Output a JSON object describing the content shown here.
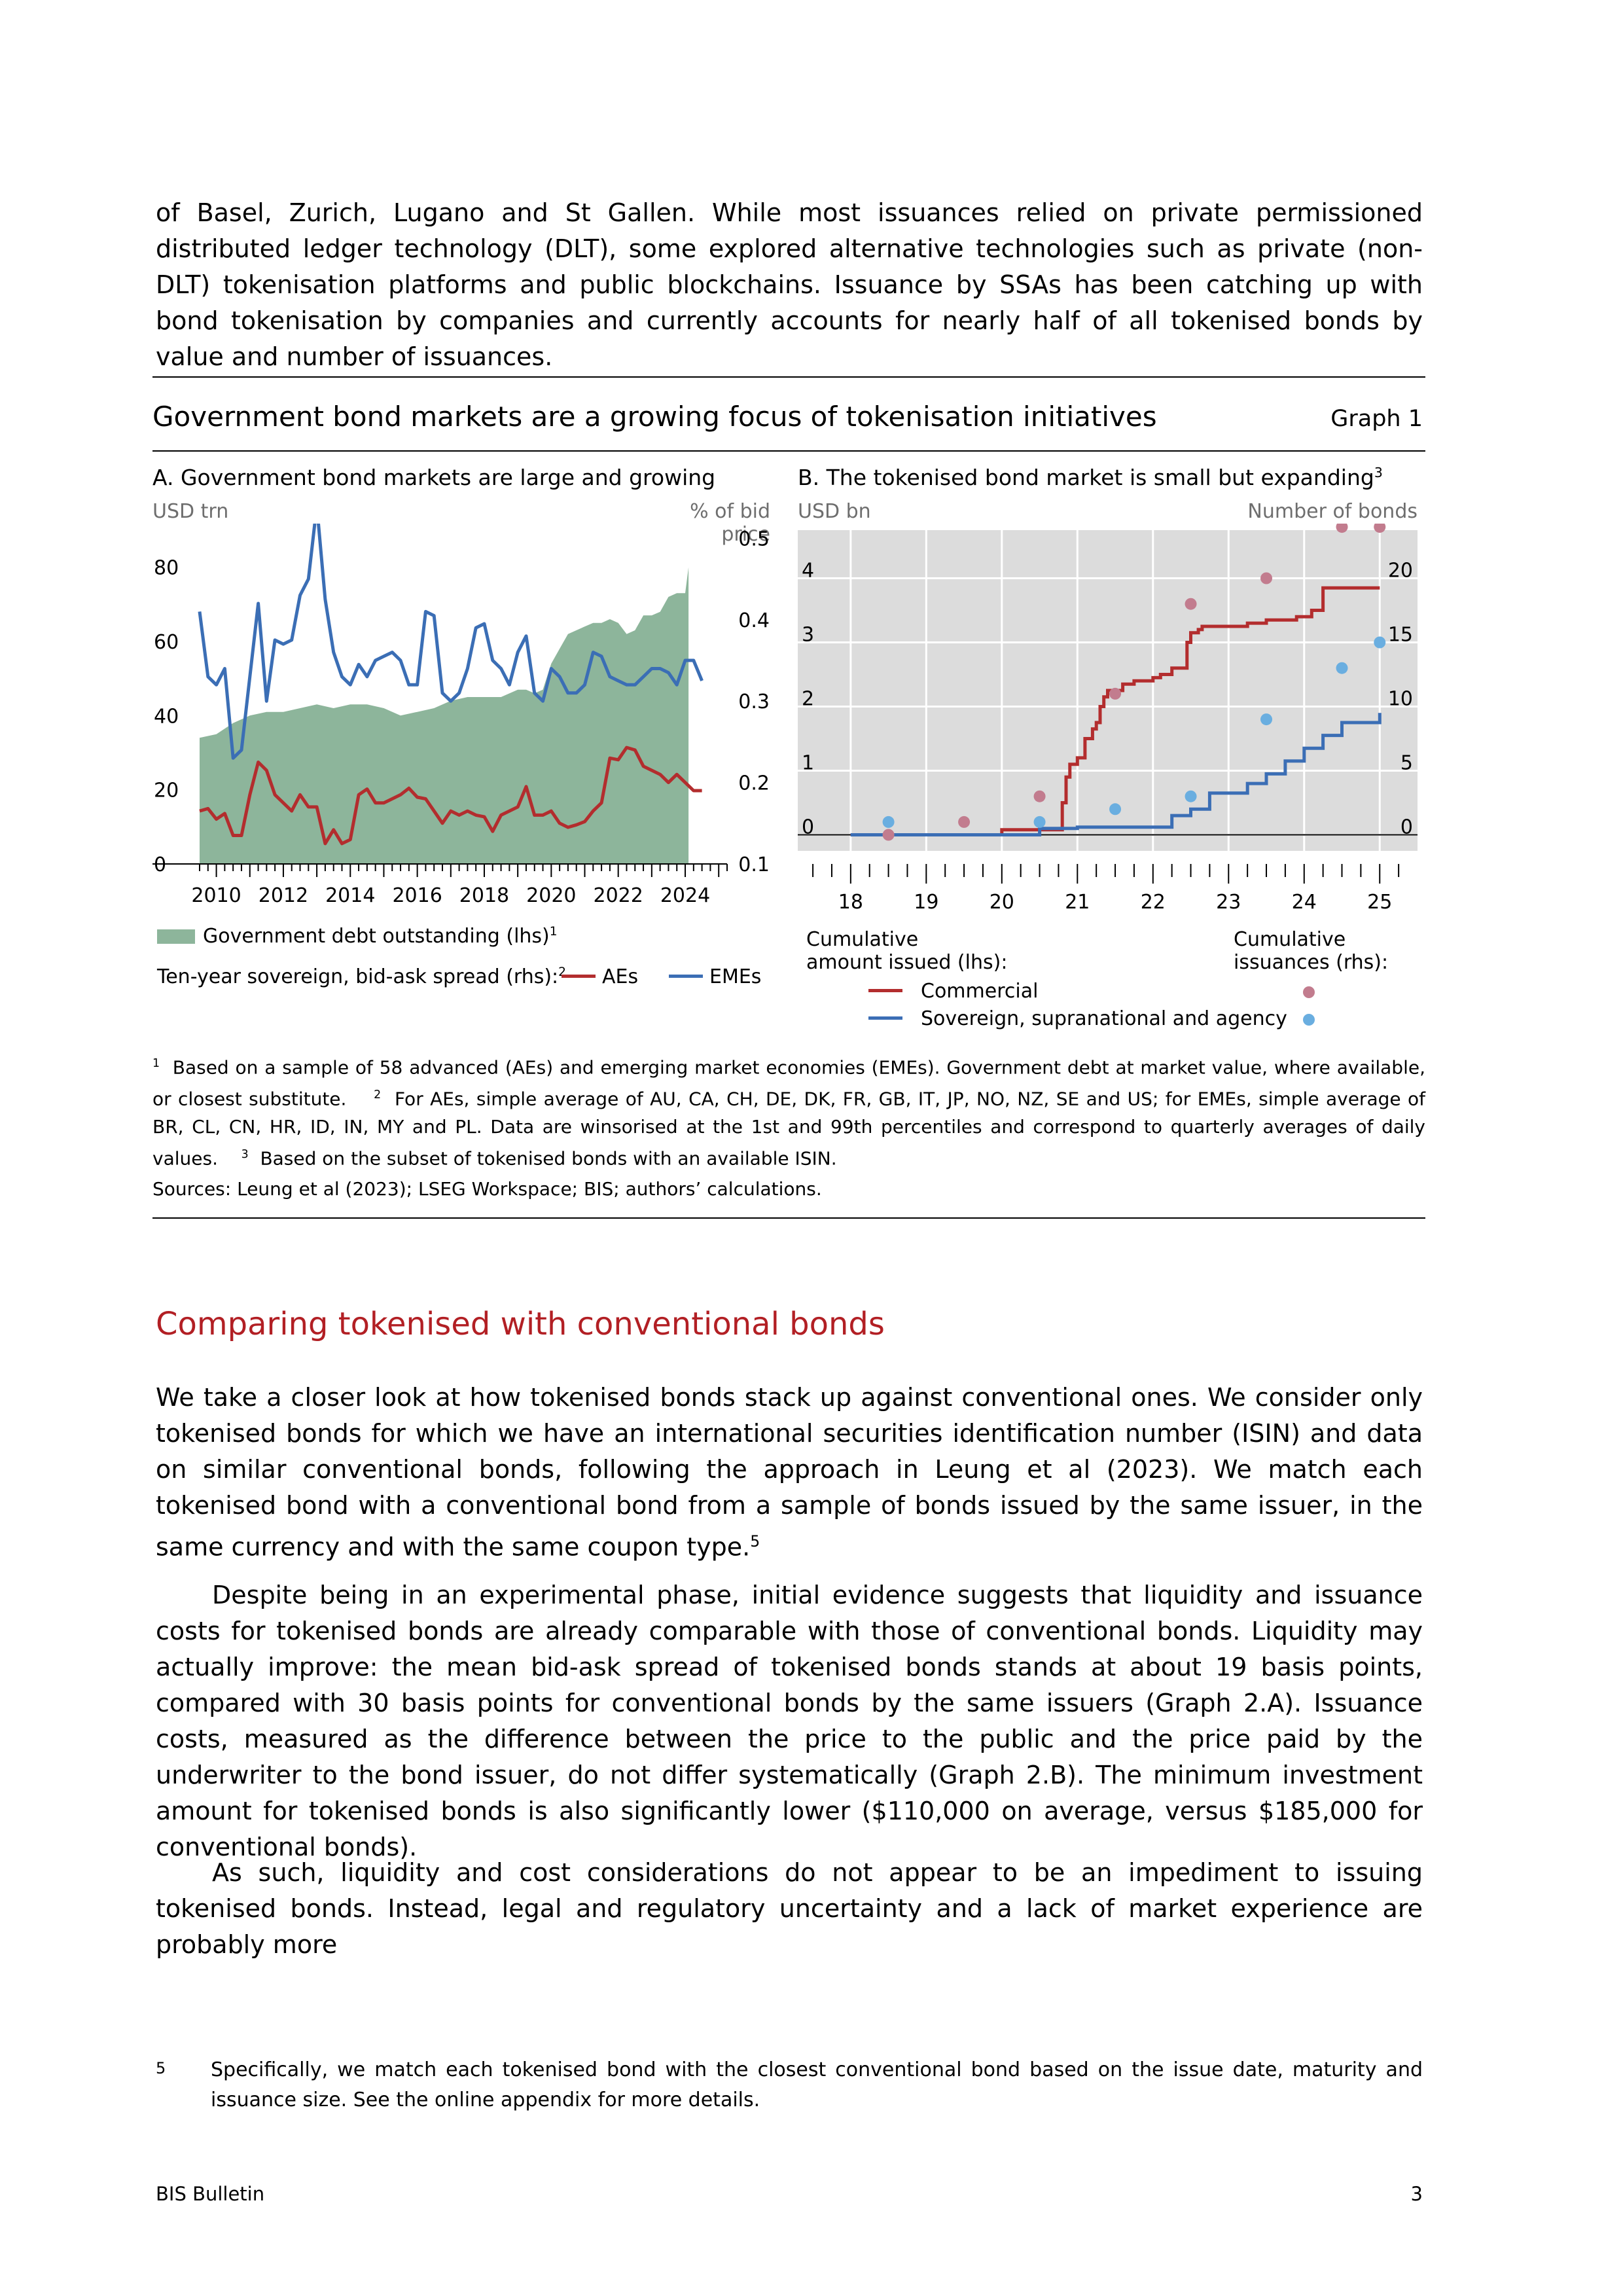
{
  "intro_paragraph": "of Basel, Zurich, Lugano and St Gallen. While most issuances relied on private permissioned distributed ledger technology (DLT), some explored alternative technologies such as private (non-DLT) tokenisation platforms and public blockchains. Issuance by SSAs has been catching up with bond tokenisation by companies and currently accounts for nearly half of all tokenised bonds by value and number of issuances.",
  "graph": {
    "title": "Government bond markets are a growing focus of tokenisation initiatives",
    "number": "Graph 1",
    "panel_a": {
      "title": "A. Government bond markets are large and growing",
      "lhs_unit": "USD trn",
      "rhs_unit": "% of bid price",
      "legend_area": "Government debt outstanding (lhs)",
      "legend_area_note": "1",
      "legend_lines_prefix": "Ten-year sovereign, bid-ask spread (rhs):",
      "legend_lines_note": "2",
      "legend_aes": "AEs",
      "legend_emes": "EMEs"
    },
    "panel_b": {
      "title": "B. The tokenised bond market is small but expanding",
      "title_note": "3",
      "lhs_unit": "USD bn",
      "rhs_unit": "Number of bonds",
      "legend_lines_head_1": "Cumulative",
      "legend_lines_head_2": "amount issued (lhs):",
      "legend_dots_head_1": "Cumulative",
      "legend_dots_head_2": "issuances (rhs):",
      "legend_commercial": "Commercial",
      "legend_ssa": "Sovereign, supranational and agency"
    },
    "footnote_1_mark": "1",
    "footnote_1": "Based on a sample of 58 advanced (AEs) and emerging market economies (EMEs). Government debt at market value, where available, or closest substitute.",
    "footnote_2_mark": "2",
    "footnote_2": "For AEs, simple average of AU, CA, CH, DE, DK, FR, GB, IT, JP, NO, NZ, SE and US; for EMEs, simple average of BR, CL, CN, HR, ID, IN, MY and PL. Data are winsorised at the 1st and 99th percentiles and correspond to quarterly averages of daily values.",
    "footnote_3_mark": "3",
    "footnote_3": "Based on the subset of tokenised bonds with an available ISIN.",
    "sources": "Sources: Leung et al (2023); LSEG Workspace; BIS; authors’ calculations."
  },
  "chart_data": [
    {
      "type": "area",
      "colors": {
        "area": "#8db59b",
        "aes": "#b32d2e",
        "emes": "#3b6eb5",
        "background": "#ffffff"
      },
      "x_tick_labels": [
        "2010",
        "2012",
        "2014",
        "2016",
        "2018",
        "2020",
        "2022",
        "2024"
      ],
      "xlim": [
        2009.5,
        2025.25
      ],
      "y_left_ticks": [
        "0",
        "20",
        "40",
        "60",
        "80"
      ],
      "ylim_left": [
        0,
        90
      ],
      "y_right_ticks": [
        "0.1",
        "0.2",
        "0.3",
        "0.4",
        "0.5"
      ],
      "ylim_right": [
        0.1,
        0.51
      ],
      "series": [
        {
          "name": "Government debt outstanding (lhs)",
          "axis": "left",
          "x": [
            2009.5,
            2010,
            2010.5,
            2011,
            2011.5,
            2012,
            2012.5,
            2013,
            2013.5,
            2014,
            2014.5,
            2015,
            2015.5,
            2016,
            2016.5,
            2017,
            2017.5,
            2018,
            2018.5,
            2019,
            2019.25,
            2019.5,
            2019.75,
            2020,
            2020.25,
            2020.5,
            2020.75,
            2021,
            2021.25,
            2021.5,
            2021.75,
            2022,
            2022.25,
            2022.5,
            2022.75,
            2023,
            2023.25,
            2023.5,
            2023.75,
            2024,
            2024.1
          ],
          "y": [
            34,
            35,
            38,
            40,
            41,
            41,
            42,
            43,
            42,
            43,
            43,
            42,
            40,
            41,
            42,
            44,
            45,
            45,
            45,
            47,
            47,
            46,
            47,
            54,
            58,
            62,
            63,
            64,
            65,
            65,
            66,
            65,
            62,
            63,
            67,
            67,
            68,
            72,
            73,
            73,
            80
          ]
        },
        {
          "name": "AEs",
          "axis": "right",
          "x": [
            2009.5,
            2009.75,
            2010,
            2010.25,
            2010.5,
            2010.75,
            2011,
            2011.25,
            2011.5,
            2011.75,
            2012,
            2012.25,
            2012.5,
            2012.75,
            2013,
            2013.25,
            2013.5,
            2013.75,
            2014,
            2014.25,
            2014.5,
            2014.75,
            2015,
            2015.25,
            2015.5,
            2015.75,
            2016,
            2016.25,
            2016.5,
            2016.75,
            2017,
            2017.25,
            2017.5,
            2017.75,
            2018,
            2018.25,
            2018.5,
            2018.75,
            2019,
            2019.25,
            2019.5,
            2019.75,
            2020,
            2020.25,
            2020.5,
            2020.75,
            2021,
            2021.25,
            2021.5,
            2021.75,
            2022,
            2022.25,
            2022.5,
            2022.75,
            2023,
            2023.25,
            2023.5,
            2023.75,
            2024,
            2024.25,
            2024.5
          ],
          "y": [
            0.165,
            0.168,
            0.155,
            0.162,
            0.135,
            0.135,
            0.185,
            0.225,
            0.215,
            0.185,
            0.175,
            0.165,
            0.185,
            0.17,
            0.17,
            0.125,
            0.142,
            0.125,
            0.13,
            0.185,
            0.192,
            0.175,
            0.175,
            0.18,
            0.185,
            0.193,
            0.182,
            0.18,
            0.165,
            0.15,
            0.165,
            0.16,
            0.165,
            0.16,
            0.158,
            0.14,
            0.16,
            0.165,
            0.17,
            0.195,
            0.16,
            0.16,
            0.165,
            0.15,
            0.145,
            0.148,
            0.152,
            0.165,
            0.175,
            0.23,
            0.228,
            0.243,
            0.24,
            0.22,
            0.215,
            0.21,
            0.2,
            0.21,
            0.2,
            0.19,
            0.19
          ]
        },
        {
          "name": "EMEs",
          "axis": "right",
          "x": [
            2009.5,
            2009.75,
            2010,
            2010.25,
            2010.5,
            2010.75,
            2011,
            2011.25,
            2011.5,
            2011.75,
            2012,
            2012.25,
            2012.5,
            2012.75,
            2013,
            2013.25,
            2013.5,
            2013.75,
            2014,
            2014.25,
            2014.5,
            2014.75,
            2015,
            2015.25,
            2015.5,
            2015.75,
            2016,
            2016.25,
            2016.5,
            2016.75,
            2017,
            2017.25,
            2017.5,
            2017.75,
            2018,
            2018.25,
            2018.5,
            2018.75,
            2019,
            2019.25,
            2019.5,
            2019.75,
            2020,
            2020.25,
            2020.5,
            2020.75,
            2021,
            2021.25,
            2021.5,
            2021.75,
            2022,
            2022.25,
            2022.5,
            2022.75,
            2023,
            2023.25,
            2023.5,
            2023.75,
            2024,
            2024.25,
            2024.5
          ],
          "y": [
            0.41,
            0.33,
            0.32,
            0.34,
            0.23,
            0.24,
            0.33,
            0.42,
            0.3,
            0.375,
            0.37,
            0.375,
            0.43,
            0.45,
            0.54,
            0.425,
            0.36,
            0.33,
            0.32,
            0.345,
            0.33,
            0.35,
            0.355,
            0.36,
            0.35,
            0.32,
            0.32,
            0.41,
            0.405,
            0.31,
            0.3,
            0.31,
            0.34,
            0.39,
            0.395,
            0.35,
            0.34,
            0.32,
            0.36,
            0.38,
            0.31,
            0.3,
            0.34,
            0.33,
            0.31,
            0.31,
            0.32,
            0.36,
            0.355,
            0.33,
            0.325,
            0.32,
            0.32,
            0.33,
            0.34,
            0.34,
            0.335,
            0.32,
            0.35,
            0.35,
            0.325
          ]
        }
      ]
    },
    {
      "type": "line",
      "colors": {
        "commercial": "#b32d2e",
        "ssa": "#3b6eb5",
        "commercial_dots": "#c27c8e",
        "ssa_dots": "#6aaee0",
        "background": "#dcdcdc"
      },
      "x_tick_labels": [
        "18",
        "19",
        "20",
        "21",
        "22",
        "23",
        "24",
        "25"
      ],
      "xlim": [
        17.3,
        25.5
      ],
      "y_left_ticks": [
        "0",
        "1",
        "2",
        "3",
        "4"
      ],
      "ylim_left": [
        -0.25,
        4.75
      ],
      "y_right_ticks": [
        "0",
        "5",
        "10",
        "15",
        "20"
      ],
      "ylim_right": [
        -1.25,
        23.75
      ],
      "series": [
        {
          "name": "Commercial",
          "axis": "left",
          "x": [
            18.0,
            19.5,
            20.0,
            20.75,
            20.8,
            20.85,
            20.9,
            21.0,
            21.1,
            21.2,
            21.25,
            21.3,
            21.35,
            21.4,
            21.5,
            21.6,
            21.75,
            22.0,
            22.1,
            22.25,
            22.4,
            22.45,
            22.5,
            22.6,
            22.65,
            22.75,
            23.0,
            23.25,
            23.4,
            23.5,
            23.75,
            23.9,
            24.1,
            24.25,
            24.5,
            24.75,
            25.0
          ],
          "y": [
            0.0,
            0.0,
            0.08,
            0.08,
            0.5,
            0.9,
            1.1,
            1.2,
            1.5,
            1.65,
            1.75,
            2.0,
            2.15,
            2.25,
            2.25,
            2.35,
            2.4,
            2.45,
            2.5,
            2.6,
            2.6,
            3.0,
            3.15,
            3.2,
            3.25,
            3.25,
            3.25,
            3.3,
            3.3,
            3.35,
            3.35,
            3.4,
            3.5,
            3.85,
            3.85,
            3.85,
            3.85
          ]
        },
        {
          "name": "Sovereign, supranational and agency",
          "axis": "left",
          "x": [
            18.0,
            19.0,
            20.0,
            20.5,
            21.0,
            21.5,
            22.0,
            22.25,
            22.5,
            22.75,
            23.0,
            23.25,
            23.5,
            23.75,
            24.0,
            24.25,
            24.5,
            24.75,
            25.0
          ],
          "y": [
            0.0,
            0.0,
            0.0,
            0.1,
            0.12,
            0.12,
            0.12,
            0.3,
            0.4,
            0.65,
            0.65,
            0.8,
            0.95,
            1.15,
            1.35,
            1.55,
            1.75,
            1.75,
            1.9
          ]
        },
        {
          "name": "Commercial issuances",
          "axis": "right",
          "kind": "dots",
          "x": [
            18.5,
            19.5,
            20.5,
            21.5,
            22.5,
            23.5,
            24.5,
            25.0
          ],
          "y": [
            0,
            1,
            3,
            11,
            18,
            20,
            24,
            24
          ]
        },
        {
          "name": "Sovereign, supranational and agency issuances",
          "axis": "right",
          "kind": "dots",
          "x": [
            18.5,
            20.5,
            21.5,
            22.5,
            23.5,
            24.5,
            25.0
          ],
          "y": [
            1,
            1,
            2,
            3,
            9,
            13,
            15
          ]
        }
      ]
    }
  ],
  "section_heading": "Comparing tokenised with conventional bonds",
  "body_p1": "We take a closer look at how tokenised bonds stack up against conventional ones. We consider only tokenised bonds for which we have an international securities identification number (ISIN) and data on similar conventional bonds, following the approach in Leung et al (2023). We match each tokenised bond with a conventional bond from a sample of bonds issued by the same issuer, in the same currency and with the same coupon type.",
  "body_p1_note": "5",
  "body_p2": "Despite being in an experimental phase, initial evidence suggests that liquidity and issuance costs for tokenised bonds are already comparable with those of conventional bonds. Liquidity may actually improve: the mean bid-ask spread of tokenised bonds stands at about 19 basis points, compared with 30 basis points for conventional bonds by the same issuers (Graph 2.A). Issuance costs, measured as the difference between the price to the public and the price paid by the underwriter to the bond issuer, do not differ systematically (Graph 2.B). The minimum investment amount for tokenised bonds is also significantly lower ($110,000 on average, versus $185,000 for conventional bonds).",
  "body_p3": "As such, liquidity and cost considerations do not appear to be an impediment to issuing tokenised bonds. Instead, legal and regulatory uncertainty and a lack of market experience are probably more",
  "page_footnote_mark": "5",
  "page_footnote": "Specifically, we match each tokenised bond with the closest conventional bond based on the issue date, maturity and issuance size. See the online appendix for more details.",
  "footer_left": "BIS Bulletin",
  "footer_right": "3"
}
